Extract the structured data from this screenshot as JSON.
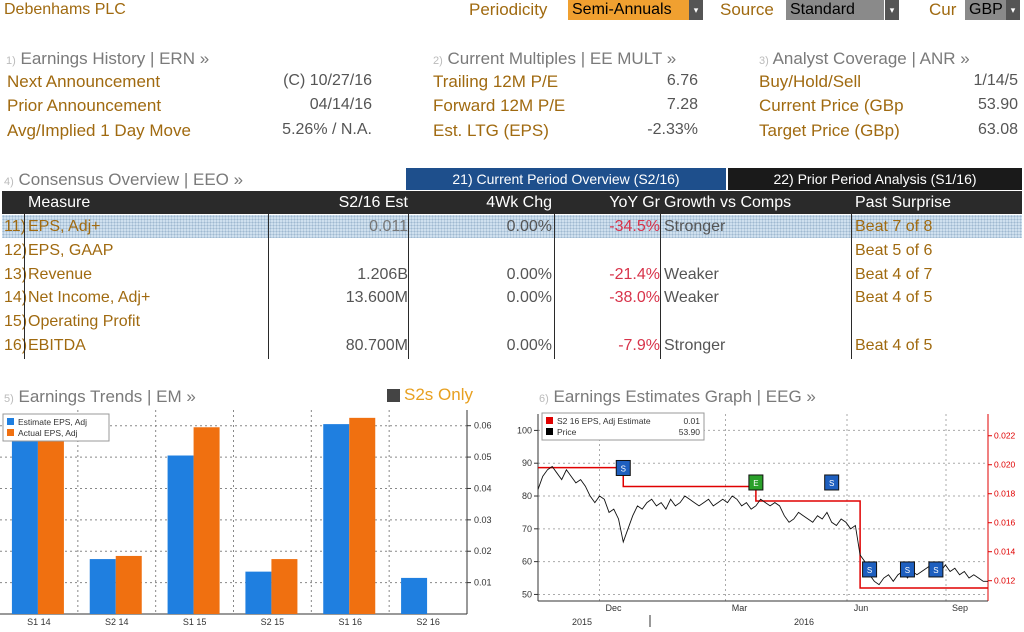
{
  "header": {
    "company": "Debenhams PLC",
    "periodicity_label": "Periodicity",
    "periodicity_value": "Semi-Annuals",
    "source_label": "Source",
    "source_value": "Standard",
    "currency_label": "Cur",
    "currency_value": "GBP"
  },
  "earnings_history": {
    "num": "1)",
    "title": "Earnings History | ERN »",
    "rows": [
      {
        "label": "Next Announcement",
        "value": "(C)  10/27/16"
      },
      {
        "label": "Prior Announcement",
        "value": "04/14/16"
      },
      {
        "label": "Avg/Implied 1 Day Move",
        "value": "5.26% / N.A."
      }
    ]
  },
  "current_multiples": {
    "num": "2)",
    "title": "Current Multiples | EE MULT »",
    "rows": [
      {
        "label": "Trailing 12M P/E",
        "value": "6.76"
      },
      {
        "label": "Forward 12M P/E",
        "value": "7.28"
      },
      {
        "label": "Est. LTG (EPS)",
        "value": "-2.33%"
      }
    ]
  },
  "analyst_coverage": {
    "num": "3)",
    "title": "Analyst Coverage | ANR »",
    "rows": [
      {
        "label": "Buy/Hold/Sell",
        "value": "1/14/5"
      },
      {
        "label": "Current Price (GBp",
        "value": "53.90"
      },
      {
        "label": "Target Price (GBp)",
        "value": "63.08"
      }
    ]
  },
  "consensus": {
    "num": "4)",
    "title": "Consensus Overview | EEO »",
    "tab_current": "21) Current Period Overview (S2/16)",
    "tab_prior": "22) Prior Period Analysis (S1/16)",
    "columns": [
      "Measure",
      "S2/16 Est",
      "4Wk Chg",
      "YoY Gr",
      "Growth vs Comps",
      "Past Surprise"
    ],
    "rows": [
      {
        "num": "11)",
        "measure": "EPS, Adj+",
        "est": "0.011",
        "chg": "0.00%",
        "yoy": "-34.5%",
        "growth": "Stronger",
        "surprise": "Beat 7 of 8"
      },
      {
        "num": "12)",
        "measure": "EPS, GAAP",
        "est": "",
        "chg": "",
        "yoy": "",
        "growth": "",
        "surprise": "Beat 5 of 6"
      },
      {
        "num": "13)",
        "measure": "Revenue",
        "est": "1.206B",
        "chg": "0.00%",
        "yoy": "-21.4%",
        "growth": "Weaker",
        "surprise": "Beat 4 of 7"
      },
      {
        "num": "14)",
        "measure": "Net Income, Adj+",
        "est": "13.600M",
        "chg": "0.00%",
        "yoy": "-38.0%",
        "growth": "Weaker",
        "surprise": "Beat 4 of 5"
      },
      {
        "num": "15)",
        "measure": "Operating Profit",
        "est": "",
        "chg": "",
        "yoy": "",
        "growth": "",
        "surprise": ""
      },
      {
        "num": "16)",
        "measure": "EBITDA",
        "est": "80.700M",
        "chg": "0.00%",
        "yoy": "-7.9%",
        "growth": "Stronger",
        "surprise": "Beat 4 of 5"
      }
    ]
  },
  "earnings_trends": {
    "num": "5)",
    "title": "Earnings Trends | EM »",
    "toggle_label": "S2s Only"
  },
  "earnings_graph": {
    "num": "6)",
    "title": "Earnings Estimates Graph | EEG »"
  },
  "colors": {
    "estimate": "#1f7fe0",
    "actual": "#f07010",
    "price": "#000000",
    "estimate_line": "#e00000",
    "accent": "#a06a10",
    "tab_active": "#1e4f8c"
  },
  "chart_data": [
    {
      "type": "bar",
      "categories": [
        "S1 14",
        "S2 14",
        "S1 15",
        "S2 15",
        "S1 16",
        "S2 16"
      ],
      "series": [
        {
          "name": "Estimate EPS, Adj",
          "values": [
            0.059,
            0.0175,
            0.0505,
            0.0135,
            0.0605,
            0.0115
          ]
        },
        {
          "name": "Actual EPS, Adj",
          "values": [
            0.059,
            0.0185,
            0.0595,
            0.0175,
            0.0625,
            null
          ]
        }
      ],
      "ylim": [
        0,
        0.065
      ],
      "yticks": [
        "0.01",
        "0.02",
        "0.03",
        "0.04",
        "0.05",
        "0.06"
      ],
      "y_axis_side": "right",
      "legend": "top-left",
      "grid": true
    },
    {
      "type": "line",
      "x_labels": [
        "Dec",
        "Mar",
        "Jun",
        "Sep"
      ],
      "x_years": [
        "2015",
        "2016"
      ],
      "legend_entries": [
        {
          "name": "S2 16 EPS, Adj Estimate",
          "value": "0.01"
        },
        {
          "name": "Price",
          "value": "53.90"
        }
      ],
      "left_axis": {
        "ticks": [
          "50",
          "60",
          "70",
          "80",
          "90",
          "100"
        ],
        "range": [
          48,
          105
        ]
      },
      "right_axis": {
        "ticks": [
          "0.012",
          "0.014",
          "0.016",
          "0.018",
          "0.020",
          "0.022"
        ],
        "range": [
          0.0106,
          0.0235
        ]
      },
      "price": [
        82,
        86,
        88,
        89,
        87,
        85,
        88,
        86,
        84,
        85,
        83,
        80,
        78,
        80,
        79,
        75,
        76,
        73,
        66,
        70,
        74,
        77,
        76,
        78,
        79,
        77,
        78,
        76,
        79,
        77,
        78,
        80,
        79,
        78,
        77,
        78,
        79,
        77,
        78,
        79,
        78,
        80,
        79,
        77,
        78,
        76,
        77,
        79,
        78,
        77,
        78,
        77,
        74,
        72,
        73,
        75,
        74,
        73,
        72,
        74,
        73,
        75,
        72,
        71,
        73,
        72,
        70,
        71,
        62,
        60,
        56,
        54,
        53,
        55,
        56,
        54,
        56,
        57,
        55,
        57,
        56,
        57,
        58,
        59,
        58,
        57,
        59,
        57,
        58,
        56,
        57,
        55,
        56,
        55,
        54,
        54
      ],
      "estimate": [
        0.0198,
        0.0198,
        0.0198,
        0.0198,
        0.0198,
        0.0198,
        0.0198,
        0.0198,
        0.0198,
        0.0198,
        0.0198,
        0.0198,
        0.0198,
        0.0198,
        0.0198,
        0.0198,
        0.0198,
        0.0198,
        0.0185,
        0.0185,
        0.0185,
        0.0185,
        0.0185,
        0.0185,
        0.0185,
        0.0185,
        0.0185,
        0.0185,
        0.0185,
        0.0185,
        0.0185,
        0.0185,
        0.0185,
        0.0185,
        0.0185,
        0.0185,
        0.0185,
        0.0185,
        0.0185,
        0.0185,
        0.0185,
        0.0185,
        0.0185,
        0.0185,
        0.0185,
        0.0185,
        0.0175,
        0.0175,
        0.0175,
        0.0175,
        0.0175,
        0.0175,
        0.0175,
        0.0175,
        0.0175,
        0.0175,
        0.0175,
        0.0175,
        0.0175,
        0.0175,
        0.0175,
        0.0175,
        0.0175,
        0.0175,
        0.0175,
        0.0175,
        0.0175,
        0.0175,
        0.0115,
        0.0115,
        0.0115,
        0.0115,
        0.0115,
        0.0115,
        0.0115,
        0.0115,
        0.0115,
        0.0115,
        0.0115,
        0.0115,
        0.0115,
        0.0115,
        0.0115,
        0.0115,
        0.0115,
        0.0115,
        0.0115,
        0.0115,
        0.0115,
        0.0115,
        0.0115,
        0.0115,
        0.0115,
        0.0115,
        0.0115,
        0.0115
      ],
      "markers": [
        {
          "label": "S",
          "color": "#1e5fbf",
          "index": 18
        },
        {
          "label": "E",
          "color": "#2aa02a",
          "index": 46
        },
        {
          "label": "S",
          "color": "#1e5fbf",
          "index": 62
        },
        {
          "label": "S",
          "color": "#1e5fbf",
          "index": 70
        },
        {
          "label": "S",
          "color": "#1e5fbf",
          "index": 78
        },
        {
          "label": "S",
          "color": "#1e5fbf",
          "index": 84
        }
      ]
    }
  ]
}
